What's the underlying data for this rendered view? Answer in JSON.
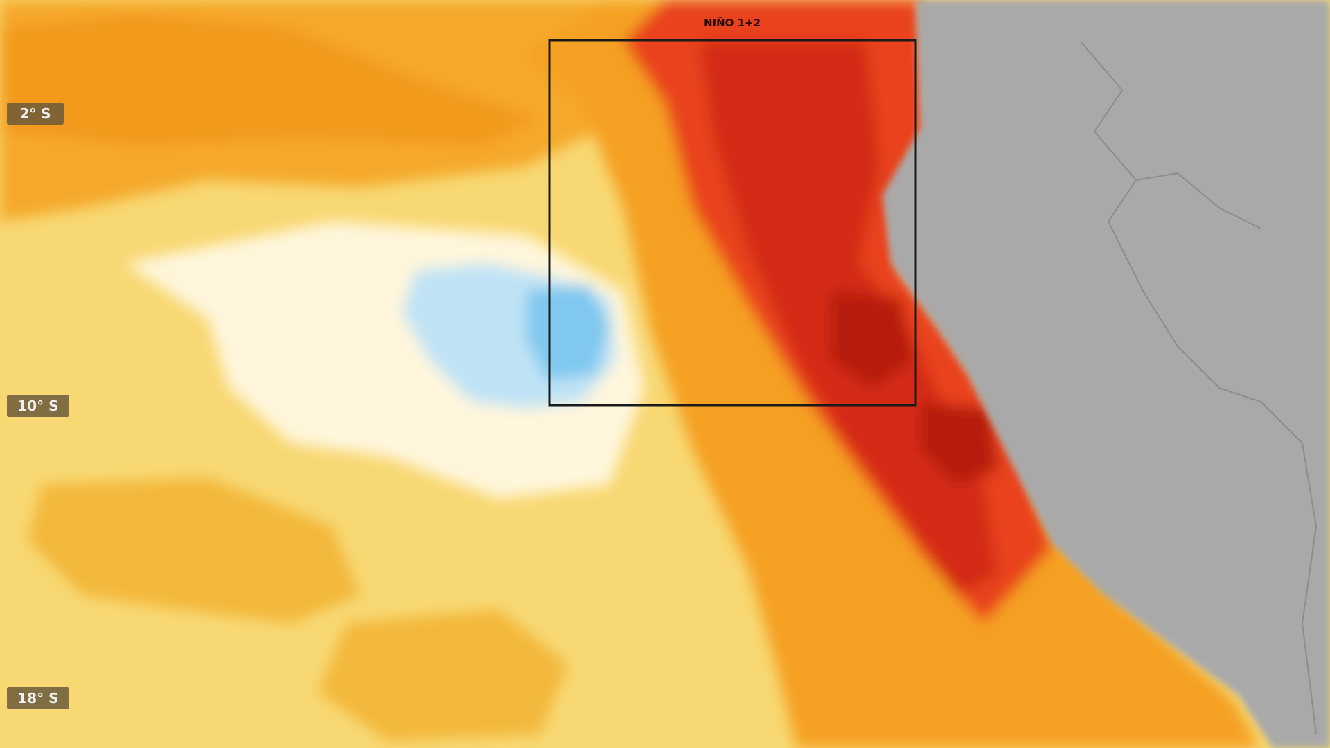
{
  "labels": {
    "lat": [
      "2° S",
      "10° S",
      "18° S"
    ],
    "region": "NIÑO 1+2"
  }
}
